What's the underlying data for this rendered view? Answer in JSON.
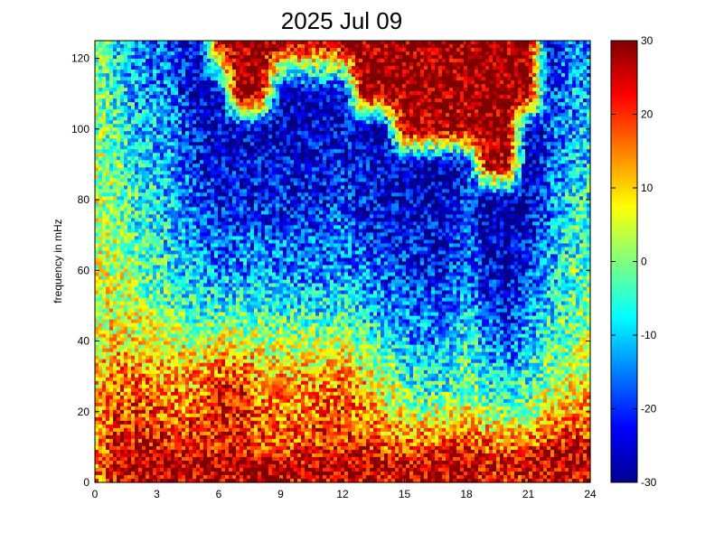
{
  "chart_data": {
    "type": "heatmap",
    "title": "2025 Jul 09",
    "xlabel": "",
    "ylabel": "frequency in mHz",
    "xlim": [
      0,
      24
    ],
    "ylim": [
      0,
      125
    ],
    "xticks": [
      0,
      3,
      6,
      9,
      12,
      15,
      18,
      21,
      24
    ],
    "yticks": [
      0,
      20,
      40,
      60,
      80,
      100,
      120
    ],
    "colorbar": {
      "range": [
        -30,
        30
      ],
      "ticks": [
        30,
        20,
        10,
        0,
        -10,
        -20,
        -30
      ],
      "colormap": "jet"
    },
    "grid": false,
    "rows": [
      {
        "freq": 0,
        "values": [
          15,
          20,
          25,
          26,
          26,
          26,
          26,
          26,
          26,
          26,
          25,
          25,
          24,
          25,
          25,
          25,
          26,
          26,
          25,
          22,
          22,
          24,
          25,
          26,
          25
        ]
      },
      {
        "freq": 5,
        "values": [
          12,
          26,
          28,
          28,
          29,
          29,
          29,
          29,
          29,
          28,
          27,
          27,
          28,
          28,
          27,
          26,
          27,
          28,
          28,
          26,
          24,
          27,
          28,
          29,
          28
        ]
      },
      {
        "freq": 10,
        "values": [
          12,
          24,
          24,
          24,
          23,
          22,
          22,
          22,
          20,
          20,
          20,
          21,
          21,
          20,
          18,
          16,
          17,
          20,
          22,
          17,
          15,
          18,
          22,
          24,
          24
        ]
      },
      {
        "freq": 15,
        "values": [
          12,
          22,
          22,
          21,
          20,
          20,
          22,
          22,
          18,
          18,
          18,
          19,
          20,
          17,
          14,
          11,
          11,
          12,
          14,
          11,
          8,
          10,
          15,
          18,
          18
        ]
      },
      {
        "freq": 20,
        "values": [
          10,
          20,
          20,
          18,
          16,
          18,
          22,
          24,
          16,
          16,
          15,
          18,
          19,
          14,
          10,
          6,
          2,
          4,
          6,
          2,
          -2,
          2,
          8,
          12,
          14
        ]
      },
      {
        "freq": 25,
        "values": [
          9,
          18,
          18,
          16,
          14,
          16,
          22,
          23,
          14,
          14,
          13,
          16,
          18,
          12,
          6,
          2,
          -4,
          -3,
          2,
          -4,
          -8,
          -3,
          4,
          8,
          10
        ]
      },
      {
        "freq": 30,
        "values": [
          8,
          15,
          15,
          13,
          12,
          14,
          18,
          18,
          12,
          12,
          11,
          13,
          15,
          9,
          2,
          -4,
          -8,
          -6,
          0,
          -8,
          -12,
          -6,
          0,
          4,
          6
        ]
      },
      {
        "freq": 40,
        "values": [
          6,
          10,
          8,
          6,
          4,
          4,
          6,
          6,
          4,
          3,
          2,
          2,
          4,
          0,
          -6,
          -10,
          -14,
          -12,
          -6,
          -14,
          -18,
          -10,
          -4,
          0,
          2
        ]
      },
      {
        "freq": 50,
        "values": [
          5,
          6,
          3,
          0,
          -4,
          -6,
          -6,
          -6,
          -6,
          -6,
          -8,
          -8,
          -6,
          -10,
          -14,
          -16,
          -18,
          -18,
          -10,
          -20,
          -24,
          -16,
          -8,
          -2,
          0
        ]
      },
      {
        "freq": 60,
        "values": [
          4,
          4,
          0,
          -4,
          -8,
          -12,
          -14,
          -14,
          -14,
          -14,
          -15,
          -15,
          -13,
          -16,
          -18,
          -20,
          -22,
          -22,
          -14,
          -24,
          -26,
          -20,
          -12,
          -4,
          -2
        ]
      },
      {
        "freq": 70,
        "values": [
          4,
          2,
          -4,
          -6,
          -10,
          -16,
          -18,
          -18,
          -18,
          -18,
          -18,
          -18,
          -16,
          -20,
          -22,
          -24,
          -24,
          -24,
          -18,
          -26,
          -28,
          -24,
          -14,
          -6,
          -4
        ]
      },
      {
        "freq": 80,
        "values": [
          3,
          0,
          -6,
          -8,
          -12,
          -20,
          -22,
          -22,
          -22,
          -22,
          -22,
          -22,
          -20,
          -22,
          -24,
          -26,
          -26,
          -26,
          -20,
          -28,
          -28,
          -26,
          -16,
          -8,
          -6
        ]
      },
      {
        "freq": 90,
        "values": [
          3,
          -2,
          -8,
          -10,
          -14,
          -22,
          -24,
          -24,
          -24,
          -24,
          -24,
          -24,
          -22,
          -24,
          -26,
          -26,
          -28,
          -28,
          -24,
          28,
          28,
          -28,
          -18,
          -10,
          -8
        ]
      },
      {
        "freq": 100,
        "values": [
          2,
          -4,
          -10,
          -12,
          -16,
          -24,
          -26,
          -26,
          -26,
          -26,
          -26,
          -26,
          -24,
          -26,
          -28,
          28,
          28,
          28,
          28,
          30,
          30,
          -28,
          -20,
          -12,
          -10
        ]
      },
      {
        "freq": 110,
        "values": [
          2,
          -6,
          -12,
          -14,
          -18,
          -26,
          -28,
          30,
          30,
          -28,
          -28,
          -28,
          -26,
          30,
          30,
          30,
          30,
          30,
          30,
          30,
          30,
          30,
          -22,
          -14,
          -12
        ]
      },
      {
        "freq": 125,
        "values": [
          1,
          -8,
          -14,
          -16,
          -20,
          -28,
          30,
          30,
          30,
          30,
          30,
          30,
          30,
          30,
          30,
          30,
          30,
          30,
          30,
          30,
          30,
          30,
          -24,
          -16,
          -14
        ]
      }
    ]
  }
}
